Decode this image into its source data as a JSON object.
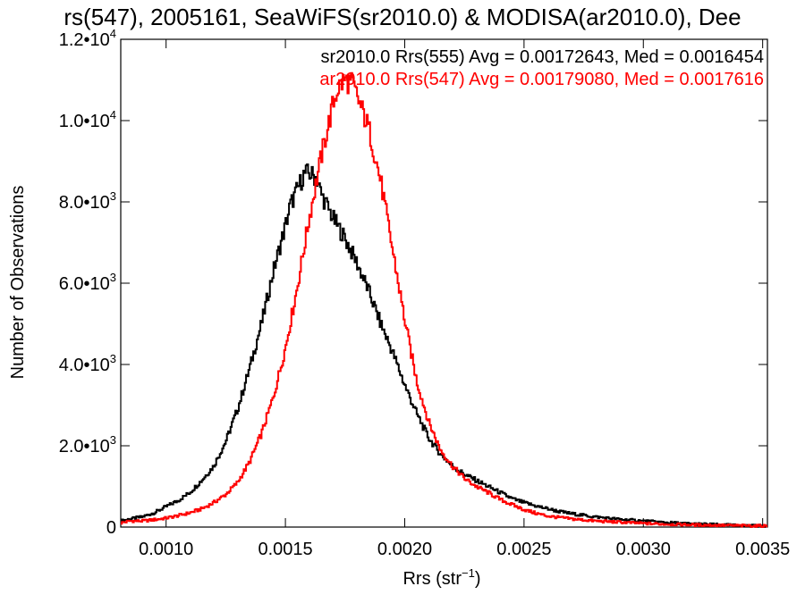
{
  "chart_data": {
    "type": "line",
    "title": "rs(547), 2005161, SeaWiFS(sr2010.0) & MODISA(ar2010.0), Dee",
    "xlabel": "Rrs (str",
    "xlabel_sup": "−1",
    "xlabel_close": ")",
    "ylabel": "Number of Observations",
    "xlim": [
      0.00081,
      0.00352
    ],
    "ylim": [
      0,
      12000
    ],
    "xticks": [
      {
        "value": 0.001,
        "label": "0.0010"
      },
      {
        "value": 0.0015,
        "label": "0.0015"
      },
      {
        "value": 0.002,
        "label": "0.0020"
      },
      {
        "value": 0.0025,
        "label": "0.0025"
      },
      {
        "value": 0.003,
        "label": "0.0030"
      },
      {
        "value": 0.0035,
        "label": "0.0035"
      }
    ],
    "yticks": [
      {
        "value": 0,
        "mant": "0",
        "exp": ""
      },
      {
        "value": 2000,
        "mant": "2.0•10",
        "exp": "3"
      },
      {
        "value": 4000,
        "mant": "4.0•10",
        "exp": "3"
      },
      {
        "value": 6000,
        "mant": "6.0•10",
        "exp": "3"
      },
      {
        "value": 8000,
        "mant": "8.0•10",
        "exp": "3"
      },
      {
        "value": 10000,
        "mant": "1.0•10",
        "exp": "4"
      },
      {
        "value": 12000,
        "mant": "1.2•10",
        "exp": "4"
      }
    ],
    "grid": false,
    "legend_position": "top-right",
    "series": [
      {
        "name": "sr2010.0 Rrs(555) Avg = 0.00172643, Med = 0.0016454",
        "color": "#000000",
        "x": [
          0.00081,
          0.00085,
          0.0009,
          0.00095,
          0.001,
          0.00105,
          0.0011,
          0.00115,
          0.0012,
          0.00125,
          0.0013,
          0.00135,
          0.0014,
          0.00145,
          0.0015,
          0.00152,
          0.00155,
          0.00158,
          0.0016,
          0.00163,
          0.00165,
          0.0017,
          0.00175,
          0.0018,
          0.00185,
          0.0019,
          0.00195,
          0.002,
          0.00205,
          0.0021,
          0.00215,
          0.0022,
          0.00225,
          0.0023,
          0.00235,
          0.0024,
          0.00245,
          0.0025,
          0.00255,
          0.0026,
          0.00265,
          0.0027,
          0.0028,
          0.0029,
          0.003,
          0.0031,
          0.0032,
          0.0033,
          0.0034,
          0.0035,
          0.00352
        ],
        "y": [
          150,
          200,
          250,
          350,
          500,
          650,
          850,
          1150,
          1500,
          2100,
          2900,
          3900,
          5000,
          6300,
          7400,
          7900,
          8300,
          8700,
          8700,
          8600,
          8200,
          7600,
          7100,
          6500,
          5800,
          5000,
          4300,
          3500,
          2800,
          2200,
          1800,
          1500,
          1300,
          1150,
          1000,
          850,
          700,
          600,
          520,
          450,
          380,
          330,
          250,
          190,
          150,
          110,
          80,
          60,
          40,
          30,
          30
        ]
      },
      {
        "name": "ar2010.0 Rrs(547) Avg = 0.00179080, Med = 0.0017616",
        "color": "#ff0000",
        "x": [
          0.00081,
          0.00085,
          0.0009,
          0.00095,
          0.001,
          0.00105,
          0.0011,
          0.00115,
          0.0012,
          0.00125,
          0.0013,
          0.00135,
          0.0014,
          0.00145,
          0.0015,
          0.00155,
          0.0016,
          0.00165,
          0.0017,
          0.00172,
          0.00175,
          0.00178,
          0.0018,
          0.00185,
          0.0019,
          0.00195,
          0.002,
          0.00205,
          0.0021,
          0.00215,
          0.0022,
          0.00225,
          0.0023,
          0.00235,
          0.0024,
          0.00245,
          0.0025,
          0.00255,
          0.0026,
          0.0027,
          0.0028,
          0.0029,
          0.003,
          0.0031,
          0.0032,
          0.0033,
          0.0034,
          0.0035,
          0.00352
        ],
        "y": [
          100,
          150,
          150,
          180,
          220,
          280,
          350,
          450,
          600,
          800,
          1100,
          1600,
          2300,
          3200,
          4400,
          5900,
          7600,
          9100,
          10400,
          10800,
          11000,
          10900,
          10600,
          9800,
          8500,
          6800,
          5100,
          3600,
          2600,
          1900,
          1500,
          1200,
          1000,
          850,
          680,
          550,
          430,
          340,
          270,
          200,
          150,
          120,
          90,
          70,
          55,
          45,
          35,
          30,
          30
        ]
      }
    ]
  }
}
